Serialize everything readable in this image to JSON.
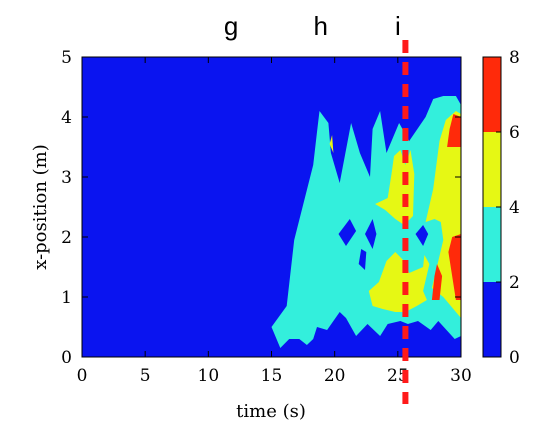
{
  "chart_data": {
    "type": "heatmap",
    "title": "",
    "xlabel": "time (s)",
    "ylabel": "x-position (m)",
    "xlim": [
      0,
      30
    ],
    "ylim": [
      0,
      5
    ],
    "xticks": [
      "0",
      "5",
      "10",
      "15",
      "20",
      "25",
      "30"
    ],
    "yticks": [
      "0",
      "1",
      "2",
      "3",
      "4",
      "5"
    ],
    "top_labels": [
      {
        "text": "g",
        "x": 11.8
      },
      {
        "text": "h",
        "x": 18.9
      },
      {
        "text": "i",
        "x": 25.0
      }
    ],
    "marker_line": {
      "x": 25.6,
      "style": "dashed",
      "color": "#ff1a1a"
    },
    "colorbar": {
      "range": [
        0,
        8
      ],
      "ticks": [
        "0",
        "2",
        "4",
        "6",
        "8"
      ],
      "bands": [
        {
          "from": 0,
          "to": 2,
          "color": "#0a14f0"
        },
        {
          "from": 2,
          "to": 4,
          "color": "#33efdc"
        },
        {
          "from": 4,
          "to": 6,
          "color": "#e6f814"
        },
        {
          "from": 6,
          "to": 8,
          "color": "#ff2a0a"
        }
      ]
    },
    "background_level": "0-2",
    "regions": [
      {
        "level": "2-4",
        "points": [
          [
            15.0,
            0.5
          ],
          [
            16.2,
            0.85
          ],
          [
            16.8,
            1.95
          ],
          [
            18.3,
            3.2
          ],
          [
            18.6,
            3.75
          ],
          [
            18.8,
            4.1
          ],
          [
            19.5,
            3.9
          ],
          [
            19.7,
            3.4
          ],
          [
            20.4,
            2.9
          ],
          [
            21.3,
            3.9
          ],
          [
            22.0,
            3.4
          ],
          [
            22.8,
            3.0
          ],
          [
            23.0,
            3.8
          ],
          [
            23.6,
            4.1
          ],
          [
            24.1,
            3.4
          ],
          [
            25.1,
            3.9
          ],
          [
            25.9,
            3.6
          ],
          [
            27.2,
            4.0
          ],
          [
            27.8,
            4.3
          ],
          [
            28.6,
            4.35
          ],
          [
            29.6,
            4.35
          ],
          [
            30.0,
            4.2
          ],
          [
            30.0,
            0.35
          ],
          [
            29.5,
            0.3
          ],
          [
            28.2,
            0.6
          ],
          [
            27.6,
            0.45
          ],
          [
            26.6,
            0.6
          ],
          [
            25.8,
            0.55
          ],
          [
            25.2,
            0.6
          ],
          [
            24.2,
            0.55
          ],
          [
            23.6,
            0.35
          ],
          [
            22.6,
            0.55
          ],
          [
            21.7,
            0.35
          ],
          [
            20.9,
            0.65
          ],
          [
            20.4,
            0.75
          ],
          [
            19.4,
            0.45
          ],
          [
            18.6,
            0.5
          ],
          [
            18.3,
            0.3
          ],
          [
            17.8,
            0.2
          ],
          [
            17.2,
            0.3
          ],
          [
            16.4,
            0.3
          ],
          [
            15.7,
            0.15
          ]
        ]
      },
      {
        "level": "0-2",
        "points": [
          [
            20.3,
            2.05
          ],
          [
            20.9,
            1.85
          ],
          [
            21.7,
            2.1
          ],
          [
            21.2,
            2.3
          ]
        ]
      },
      {
        "level": "0-2",
        "points": [
          [
            22.4,
            2.05
          ],
          [
            23.0,
            2.3
          ],
          [
            23.3,
            2.05
          ],
          [
            23.0,
            1.8
          ]
        ]
      },
      {
        "level": "0-2",
        "points": [
          [
            26.4,
            2.05
          ],
          [
            27.0,
            2.2
          ],
          [
            27.4,
            2.05
          ],
          [
            27.0,
            1.85
          ]
        ]
      },
      {
        "level": "0-2",
        "points": [
          [
            21.9,
            1.55
          ],
          [
            22.4,
            1.45
          ],
          [
            22.5,
            1.75
          ],
          [
            22.1,
            1.8
          ]
        ]
      },
      {
        "level": "4-6",
        "points": [
          [
            19.6,
            3.55
          ],
          [
            19.9,
            3.4
          ],
          [
            19.8,
            3.7
          ]
        ]
      },
      {
        "level": "4-6",
        "points": [
          [
            23.2,
            2.55
          ],
          [
            24.2,
            2.65
          ],
          [
            24.5,
            3.05
          ],
          [
            24.7,
            3.35
          ],
          [
            25.2,
            3.45
          ],
          [
            25.6,
            3.2
          ],
          [
            26.0,
            3.45
          ],
          [
            26.3,
            3.05
          ],
          [
            26.2,
            2.35
          ],
          [
            25.5,
            2.2
          ],
          [
            24.8,
            2.3
          ],
          [
            24.0,
            2.45
          ]
        ]
      },
      {
        "level": "4-6",
        "points": [
          [
            22.7,
            1.1
          ],
          [
            23.5,
            1.25
          ],
          [
            24.1,
            1.6
          ],
          [
            24.8,
            1.75
          ],
          [
            25.5,
            1.6
          ],
          [
            25.9,
            1.4
          ],
          [
            27.0,
            1.5
          ],
          [
            27.1,
            1.7
          ],
          [
            27.5,
            1.55
          ],
          [
            27.0,
            1.1
          ],
          [
            27.3,
            0.95
          ],
          [
            26.5,
            0.85
          ],
          [
            25.6,
            0.75
          ],
          [
            24.8,
            0.75
          ],
          [
            23.8,
            0.8
          ],
          [
            23.0,
            0.85
          ]
        ]
      },
      {
        "level": "4-6",
        "points": [
          [
            27.2,
            2.25
          ],
          [
            27.8,
            2.8
          ],
          [
            28.3,
            3.6
          ],
          [
            28.8,
            3.95
          ],
          [
            29.6,
            4.1
          ],
          [
            30.0,
            4.05
          ],
          [
            30.0,
            0.65
          ],
          [
            29.6,
            0.75
          ],
          [
            28.6,
            1.0
          ],
          [
            27.7,
            1.15
          ],
          [
            28.2,
            1.6
          ],
          [
            28.6,
            1.95
          ],
          [
            28.4,
            2.25
          ],
          [
            27.9,
            2.3
          ]
        ]
      },
      {
        "level": "6-8",
        "points": [
          [
            28.9,
            3.5
          ],
          [
            29.1,
            3.8
          ],
          [
            29.4,
            4.05
          ],
          [
            30.0,
            4.0
          ],
          [
            30.0,
            3.5
          ]
        ]
      },
      {
        "level": "6-8",
        "points": [
          [
            29.0,
            1.75
          ],
          [
            29.3,
            2.0
          ],
          [
            30.0,
            2.05
          ],
          [
            30.0,
            0.95
          ],
          [
            29.6,
            0.95
          ]
        ]
      },
      {
        "level": "6-8",
        "points": [
          [
            27.7,
            0.95
          ],
          [
            27.9,
            1.35
          ],
          [
            28.1,
            1.55
          ],
          [
            28.5,
            1.35
          ],
          [
            28.3,
            0.95
          ]
        ]
      }
    ]
  }
}
